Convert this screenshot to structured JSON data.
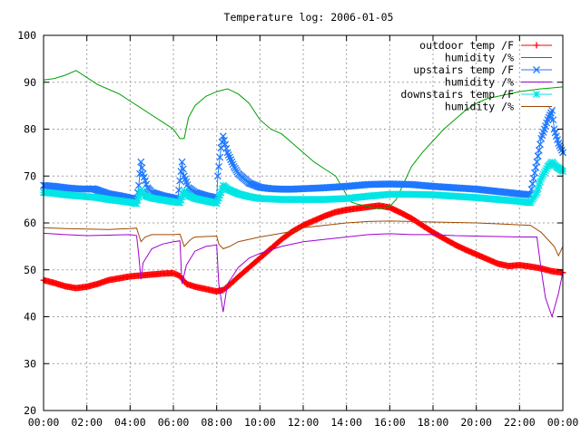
{
  "chart_data": {
    "type": "line",
    "title": "Temperature log: 2006-01-05",
    "xlabel": "",
    "ylabel": "",
    "xlim": [
      0,
      24
    ],
    "ylim": [
      20,
      100
    ],
    "grid": true,
    "legend_position": "top-right",
    "x_ticks": [
      "00:00",
      "02:00",
      "04:00",
      "06:00",
      "08:00",
      "10:00",
      "12:00",
      "14:00",
      "16:00",
      "18:00",
      "20:00",
      "22:00",
      "00:00"
    ],
    "y_ticks": [
      "20",
      "30",
      "40",
      "50",
      "60",
      "70",
      "80",
      "90",
      "100"
    ],
    "series": [
      {
        "name": "outdoor temp /F",
        "color": "#ff0000",
        "marker": "plus",
        "dense": true,
        "points": [
          [
            0,
            47.8
          ],
          [
            0.5,
            47.2
          ],
          [
            1,
            46.5
          ],
          [
            1.5,
            46.1
          ],
          [
            2,
            46.4
          ],
          [
            2.5,
            47.0
          ],
          [
            3,
            47.8
          ],
          [
            3.5,
            48.2
          ],
          [
            4,
            48.6
          ],
          [
            4.5,
            48.8
          ],
          [
            5,
            49.0
          ],
          [
            5.5,
            49.2
          ],
          [
            6,
            49.3
          ],
          [
            6.3,
            48.7
          ],
          [
            6.6,
            47.0
          ],
          [
            7,
            46.4
          ],
          [
            7.5,
            45.9
          ],
          [
            8,
            45.4
          ],
          [
            8.3,
            45.7
          ],
          [
            8.6,
            46.8
          ],
          [
            9,
            48.5
          ],
          [
            9.5,
            50.5
          ],
          [
            10,
            52.5
          ],
          [
            10.5,
            54.5
          ],
          [
            11,
            56.5
          ],
          [
            11.5,
            58.2
          ],
          [
            12,
            59.5
          ],
          [
            12.5,
            60.5
          ],
          [
            13,
            61.5
          ],
          [
            13.5,
            62.3
          ],
          [
            14,
            62.8
          ],
          [
            14.5,
            63.1
          ],
          [
            15,
            63.4
          ],
          [
            15.5,
            63.7
          ],
          [
            16,
            63.3
          ],
          [
            16.5,
            62.2
          ],
          [
            17,
            61.0
          ],
          [
            17.5,
            59.5
          ],
          [
            18,
            58.0
          ],
          [
            18.5,
            56.7
          ],
          [
            19,
            55.4
          ],
          [
            19.5,
            54.3
          ],
          [
            20,
            53.3
          ],
          [
            20.5,
            52.3
          ],
          [
            21,
            51.3
          ],
          [
            21.5,
            50.8
          ],
          [
            22,
            51.0
          ],
          [
            22.5,
            50.7
          ],
          [
            23,
            50.3
          ],
          [
            23.5,
            49.7
          ],
          [
            24,
            49.4
          ]
        ]
      },
      {
        "name": "humidity /%",
        "color": "#00a000",
        "marker": "none",
        "dense": false,
        "points": [
          [
            0,
            90.5
          ],
          [
            0.5,
            90.8
          ],
          [
            1,
            91.5
          ],
          [
            1.5,
            92.5
          ],
          [
            2,
            91.0
          ],
          [
            2.5,
            89.5
          ],
          [
            3,
            88.5
          ],
          [
            3.5,
            87.5
          ],
          [
            4,
            86.0
          ],
          [
            4.5,
            84.5
          ],
          [
            5,
            83.0
          ],
          [
            5.5,
            81.5
          ],
          [
            6,
            80.0
          ],
          [
            6.3,
            78.0
          ],
          [
            6.5,
            78.0
          ],
          [
            6.7,
            82.5
          ],
          [
            7,
            85.0
          ],
          [
            7.5,
            87.0
          ],
          [
            8,
            88.0
          ],
          [
            8.5,
            88.6
          ],
          [
            9,
            87.5
          ],
          [
            9.5,
            85.5
          ],
          [
            10,
            82.0
          ],
          [
            10.5,
            80.0
          ],
          [
            11,
            79.0
          ],
          [
            11.5,
            77.0
          ],
          [
            12,
            75.0
          ],
          [
            12.5,
            73.0
          ],
          [
            13,
            71.5
          ],
          [
            13.5,
            70.0
          ],
          [
            14,
            66.0
          ],
          [
            14.2,
            64.5
          ],
          [
            14.5,
            64.0
          ],
          [
            15,
            63.5
          ],
          [
            15.5,
            63.0
          ],
          [
            16,
            63.5
          ],
          [
            16.3,
            65.0
          ],
          [
            16.6,
            68.0
          ],
          [
            17,
            72.0
          ],
          [
            17.5,
            75.0
          ],
          [
            18,
            77.5
          ],
          [
            18.5,
            80.0
          ],
          [
            19,
            82.0
          ],
          [
            19.5,
            84.0
          ],
          [
            20,
            85.5
          ],
          [
            20.5,
            86.5
          ],
          [
            21,
            87.0
          ],
          [
            21.5,
            87.5
          ],
          [
            22,
            88.0
          ],
          [
            22.5,
            88.3
          ],
          [
            23,
            88.6
          ],
          [
            23.5,
            88.8
          ],
          [
            24,
            89.0
          ]
        ]
      },
      {
        "name": "upstairs temp /F",
        "color": "#1e78ff",
        "marker": "cross",
        "dense": true,
        "points": [
          [
            0,
            68.0
          ],
          [
            0.5,
            67.8
          ],
          [
            1,
            67.5
          ],
          [
            1.5,
            67.3
          ],
          [
            2,
            67.2
          ],
          [
            2.3,
            67.3
          ],
          [
            2.6,
            66.8
          ],
          [
            3,
            66.2
          ],
          [
            3.5,
            65.8
          ],
          [
            4,
            65.3
          ],
          [
            4.3,
            65.0
          ],
          [
            4.4,
            68.0
          ],
          [
            4.5,
            73.0
          ],
          [
            4.6,
            70.5
          ],
          [
            4.8,
            67.5
          ],
          [
            5,
            66.5
          ],
          [
            5.5,
            65.8
          ],
          [
            6,
            65.3
          ],
          [
            6.2,
            65.0
          ],
          [
            6.3,
            69.0
          ],
          [
            6.4,
            73.0
          ],
          [
            6.5,
            70.0
          ],
          [
            6.7,
            67.5
          ],
          [
            7,
            66.5
          ],
          [
            7.5,
            65.8
          ],
          [
            8,
            65.3
          ],
          [
            8.05,
            70.0
          ],
          [
            8.2,
            76.0
          ],
          [
            8.3,
            78.5
          ],
          [
            8.5,
            75.0
          ],
          [
            8.8,
            72.0
          ],
          [
            9,
            70.5
          ],
          [
            9.5,
            68.5
          ],
          [
            10,
            67.6
          ],
          [
            10.5,
            67.3
          ],
          [
            11,
            67.2
          ],
          [
            11.5,
            67.2
          ],
          [
            12,
            67.3
          ],
          [
            13,
            67.5
          ],
          [
            14,
            67.8
          ],
          [
            15,
            68.2
          ],
          [
            16,
            68.3
          ],
          [
            17,
            68.2
          ],
          [
            18,
            67.8
          ],
          [
            19,
            67.5
          ],
          [
            20,
            67.2
          ],
          [
            21,
            66.7
          ],
          [
            22,
            66.2
          ],
          [
            22.5,
            66.0
          ],
          [
            22.8,
            73.0
          ],
          [
            23,
            78.0
          ],
          [
            23.3,
            82.0
          ],
          [
            23.5,
            84.0
          ],
          [
            23.6,
            80.0
          ],
          [
            23.8,
            77.0
          ],
          [
            24,
            75.0
          ]
        ]
      },
      {
        "name": "humidity /%",
        "color": "#a000d0",
        "marker": "none",
        "dense": false,
        "points": [
          [
            0,
            57.8
          ],
          [
            1,
            57.5
          ],
          [
            2,
            57.3
          ],
          [
            3,
            57.4
          ],
          [
            4,
            57.5
          ],
          [
            4.3,
            57.3
          ],
          [
            4.4,
            53.0
          ],
          [
            4.5,
            48.0
          ],
          [
            4.6,
            51.5
          ],
          [
            5,
            54.5
          ],
          [
            5.5,
            55.5
          ],
          [
            6,
            56.0
          ],
          [
            6.3,
            56.2
          ],
          [
            6.4,
            47.0
          ],
          [
            6.6,
            51.0
          ],
          [
            7,
            54.0
          ],
          [
            7.5,
            55.0
          ],
          [
            8,
            55.3
          ],
          [
            8.1,
            47.0
          ],
          [
            8.3,
            41.0
          ],
          [
            8.5,
            47.0
          ],
          [
            9,
            50.5
          ],
          [
            9.5,
            52.5
          ],
          [
            10,
            53.5
          ],
          [
            11,
            55.0
          ],
          [
            12,
            56.0
          ],
          [
            13,
            56.5
          ],
          [
            14,
            57.0
          ],
          [
            15,
            57.5
          ],
          [
            16,
            57.7
          ],
          [
            17,
            57.5
          ],
          [
            18,
            57.5
          ],
          [
            19,
            57.3
          ],
          [
            20,
            57.2
          ],
          [
            21,
            57.1
          ],
          [
            22,
            57.0
          ],
          [
            22.8,
            57.0
          ],
          [
            23,
            50.0
          ],
          [
            23.2,
            44.0
          ],
          [
            23.5,
            40.0
          ],
          [
            23.8,
            45.0
          ],
          [
            24,
            49.5
          ]
        ]
      },
      {
        "name": "downstairs temp /F",
        "color": "#00e5e5",
        "marker": "star",
        "dense": true,
        "points": [
          [
            0,
            66.5
          ],
          [
            0.5,
            66.3
          ],
          [
            1,
            66.0
          ],
          [
            1.5,
            65.8
          ],
          [
            2,
            65.6
          ],
          [
            2.5,
            65.4
          ],
          [
            3,
            65.0
          ],
          [
            3.5,
            64.7
          ],
          [
            4,
            64.4
          ],
          [
            4.3,
            64.1
          ],
          [
            4.5,
            67.0
          ],
          [
            4.7,
            65.8
          ],
          [
            5,
            65.3
          ],
          [
            5.5,
            64.9
          ],
          [
            6,
            64.5
          ],
          [
            6.3,
            64.3
          ],
          [
            6.5,
            66.8
          ],
          [
            6.7,
            65.8
          ],
          [
            7,
            65.2
          ],
          [
            7.5,
            64.7
          ],
          [
            8,
            64.2
          ],
          [
            8.2,
            66.5
          ],
          [
            8.3,
            68.0
          ],
          [
            8.5,
            67.2
          ],
          [
            9,
            66.2
          ],
          [
            9.5,
            65.6
          ],
          [
            10,
            65.2
          ],
          [
            11,
            65.0
          ],
          [
            12,
            65.0
          ],
          [
            13,
            65.0
          ],
          [
            14,
            65.2
          ],
          [
            15,
            65.7
          ],
          [
            16,
            66.1
          ],
          [
            17,
            66.1
          ],
          [
            18,
            66.0
          ],
          [
            19,
            65.7
          ],
          [
            20,
            65.4
          ],
          [
            21,
            65.0
          ],
          [
            22,
            64.6
          ],
          [
            22.5,
            64.3
          ],
          [
            22.8,
            66.5
          ],
          [
            23,
            69.5
          ],
          [
            23.3,
            72.0
          ],
          [
            23.5,
            73.0
          ],
          [
            23.7,
            72.0
          ],
          [
            24,
            71.0
          ]
        ]
      },
      {
        "name": "humidity /%",
        "color": "#a04a00",
        "marker": "none",
        "dense": false,
        "points": [
          [
            0,
            59.0
          ],
          [
            1,
            58.8
          ],
          [
            2,
            58.7
          ],
          [
            3,
            58.6
          ],
          [
            4,
            58.8
          ],
          [
            4.3,
            58.9
          ],
          [
            4.5,
            56.0
          ],
          [
            4.7,
            57.0
          ],
          [
            5,
            57.5
          ],
          [
            6,
            57.5
          ],
          [
            6.3,
            57.6
          ],
          [
            6.5,
            55.0
          ],
          [
            6.8,
            56.5
          ],
          [
            7,
            57.0
          ],
          [
            8,
            57.2
          ],
          [
            8.1,
            55.5
          ],
          [
            8.3,
            54.5
          ],
          [
            8.6,
            55.0
          ],
          [
            9,
            56.0
          ],
          [
            10,
            57.0
          ],
          [
            11,
            57.8
          ],
          [
            11.5,
            58.2
          ],
          [
            12,
            59.0
          ],
          [
            13,
            59.5
          ],
          [
            14,
            60.0
          ],
          [
            15,
            60.3
          ],
          [
            16,
            60.4
          ],
          [
            17,
            60.3
          ],
          [
            18,
            60.2
          ],
          [
            19,
            60.1
          ],
          [
            20,
            60.0
          ],
          [
            21,
            59.8
          ],
          [
            22,
            59.6
          ],
          [
            22.5,
            59.5
          ],
          [
            23,
            58.0
          ],
          [
            23.3,
            56.5
          ],
          [
            23.6,
            55.0
          ],
          [
            23.8,
            53.0
          ],
          [
            24,
            55.0
          ]
        ]
      }
    ]
  }
}
